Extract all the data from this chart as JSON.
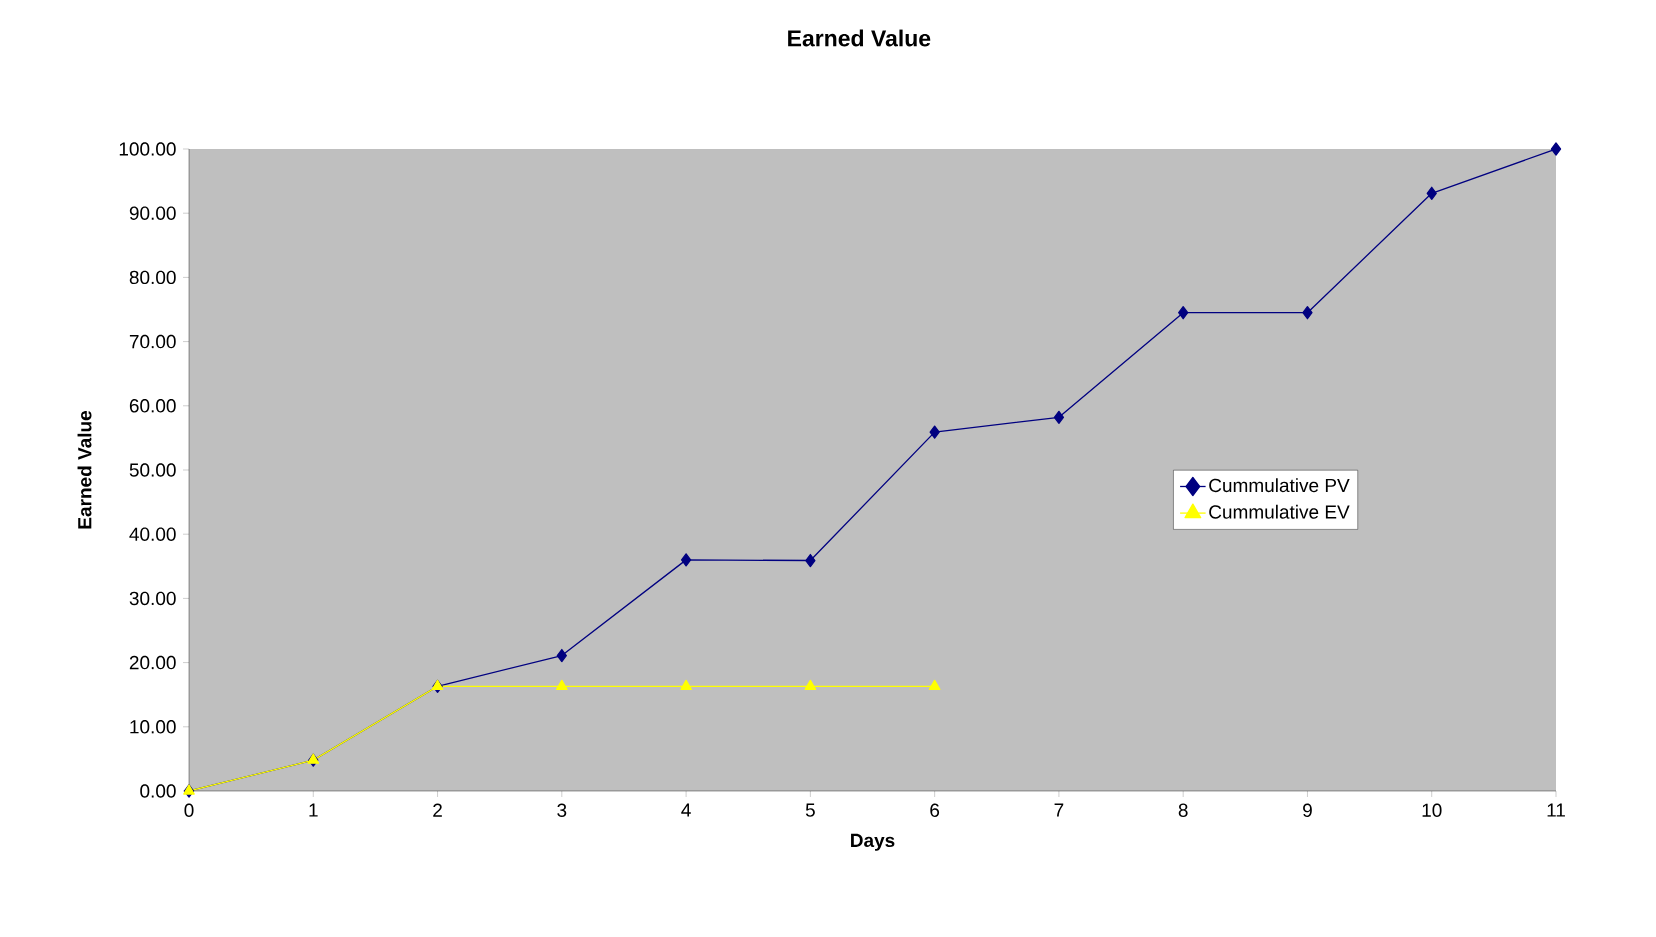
{
  "chart_data": {
    "type": "line",
    "title": "Earned Value",
    "xlabel": "Days",
    "ylabel": "Earned Value",
    "x": [
      0,
      1,
      2,
      3,
      4,
      5,
      6,
      7,
      8,
      9,
      10,
      11
    ],
    "series": [
      {
        "name": "Cummulative PV",
        "color": "#000080",
        "marker": "diamond",
        "values": [
          0,
          4.8,
          16.3,
          21.1,
          36.0,
          35.9,
          55.9,
          58.2,
          74.5,
          74.5,
          93.1,
          100
        ]
      },
      {
        "name": "Cummulative EV",
        "color": "#ffff00",
        "marker": "triangle",
        "values": [
          0,
          4.8,
          16.3,
          16.3,
          16.3,
          16.3,
          16.3,
          null,
          null,
          null,
          null,
          null
        ]
      }
    ],
    "xlim": [
      0,
      11
    ],
    "xticks": [
      0,
      1,
      2,
      3,
      4,
      5,
      6,
      7,
      8,
      9,
      10,
      11
    ],
    "ylim": [
      0,
      100
    ],
    "yticks": [
      {
        "value": 0,
        "label": "0.00"
      },
      {
        "value": 10,
        "label": "10.00"
      },
      {
        "value": 20,
        "label": "20.00"
      },
      {
        "value": 30,
        "label": "30.00"
      },
      {
        "value": 40,
        "label": "40.00"
      },
      {
        "value": 50,
        "label": "50.00"
      },
      {
        "value": 60,
        "label": "60.00"
      },
      {
        "value": 70,
        "label": "70.00"
      },
      {
        "value": 80,
        "label": "80.00"
      },
      {
        "value": 90,
        "label": "90.00"
      },
      {
        "value": 100,
        "label": "100.00"
      }
    ],
    "grid": false,
    "legend": "right",
    "line_style": "solid"
  }
}
